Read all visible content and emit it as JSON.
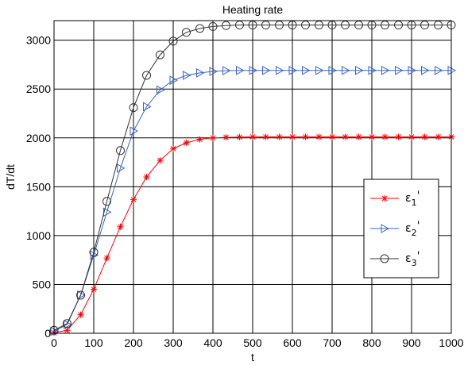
{
  "chart_data": {
    "type": "line",
    "title": "Heating rate",
    "xlabel": "t",
    "ylabel": "dT/dt",
    "xlim": [
      0,
      1000
    ],
    "ylim": [
      0,
      3200
    ],
    "xticks": [
      0,
      100,
      200,
      300,
      400,
      500,
      600,
      700,
      800,
      900,
      1000
    ],
    "yticks": [
      0,
      500,
      1000,
      1500,
      2000,
      2500,
      3000
    ],
    "grid": true,
    "legend_position": "center-right",
    "x": [
      0,
      33,
      67,
      100,
      133,
      167,
      200,
      233,
      267,
      300,
      333,
      367,
      400,
      433,
      467,
      500,
      533,
      567,
      600,
      633,
      667,
      700,
      733,
      767,
      800,
      833,
      867,
      900,
      933,
      967,
      1000
    ],
    "series": [
      {
        "name": "ε1'",
        "label_base": "ε",
        "label_sub": "1",
        "label_suffix": "'",
        "color": "#ff0000",
        "marker": "asterisk",
        "values": [
          5,
          30,
          190,
          450,
          770,
          1090,
          1370,
          1600,
          1770,
          1890,
          1950,
          1985,
          2000,
          2005,
          2008,
          2010,
          2010,
          2010,
          2010,
          2010,
          2010,
          2010,
          2010,
          2010,
          2010,
          2010,
          2010,
          2010,
          2010,
          2010,
          2010
        ]
      },
      {
        "name": "ε2'",
        "label_base": "ε",
        "label_sub": "2",
        "label_suffix": "'",
        "color": "#3a63c6",
        "marker": "triangle-right",
        "values": [
          20,
          90,
          390,
          800,
          1240,
          1690,
          2070,
          2320,
          2490,
          2590,
          2640,
          2665,
          2680,
          2688,
          2690,
          2690,
          2690,
          2690,
          2690,
          2690,
          2690,
          2690,
          2690,
          2690,
          2690,
          2690,
          2690,
          2690,
          2690,
          2690,
          2690
        ]
      },
      {
        "name": "ε3'",
        "label_base": "ε",
        "label_sub": "3",
        "label_suffix": "'",
        "color": "#333333",
        "marker": "circle",
        "values": [
          30,
          100,
          390,
          830,
          1350,
          1870,
          2310,
          2640,
          2850,
          2990,
          3080,
          3120,
          3140,
          3150,
          3155,
          3155,
          3155,
          3155,
          3155,
          3155,
          3155,
          3155,
          3155,
          3155,
          3155,
          3155,
          3155,
          3155,
          3155,
          3155,
          3155
        ]
      }
    ]
  }
}
